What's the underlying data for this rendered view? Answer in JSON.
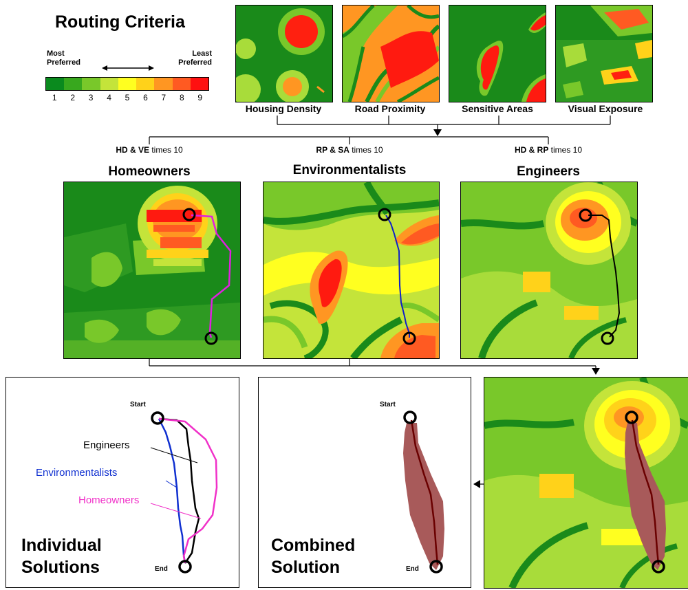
{
  "title": "Routing Criteria",
  "legend": {
    "most": "Most Preferred",
    "least": "Least Preferred",
    "scale": [
      "1",
      "2",
      "3",
      "4",
      "5",
      "6",
      "7",
      "8",
      "9"
    ],
    "colors": [
      "#0a8a1e",
      "#38a81e",
      "#79c82a",
      "#c4e43a",
      "#ffff20",
      "#ffd21a",
      "#ff9622",
      "#ff5a22",
      "#ff1010"
    ]
  },
  "layers": [
    "Housing Density",
    "Road Proximity",
    "Sensitive Areas",
    "Visual Exposure"
  ],
  "groups": [
    {
      "note_bold": "HD & VE",
      "note_rest": " times 10",
      "title": "Homeowners",
      "route_color": "#e020e0"
    },
    {
      "note_bold": "RP & SA",
      "note_rest": " times 10",
      "title": "Environmentalists",
      "route_color": "#1020c8"
    },
    {
      "note_bold": "HD & RP",
      "note_rest": " times 10",
      "title": "Engineers",
      "route_color": "#000000"
    }
  ],
  "individual": {
    "start": "Start",
    "end": "End",
    "labels": [
      "Engineers",
      "Environmentalists",
      "Homeowners"
    ],
    "label_colors": [
      "#000000",
      "#1030d0",
      "#f030c8"
    ],
    "caption_line1": "Individual",
    "caption_line2": "Solutions"
  },
  "combined": {
    "start": "Start",
    "end": "End",
    "caption_line1": "Combined",
    "caption_line2": "Solution"
  }
}
